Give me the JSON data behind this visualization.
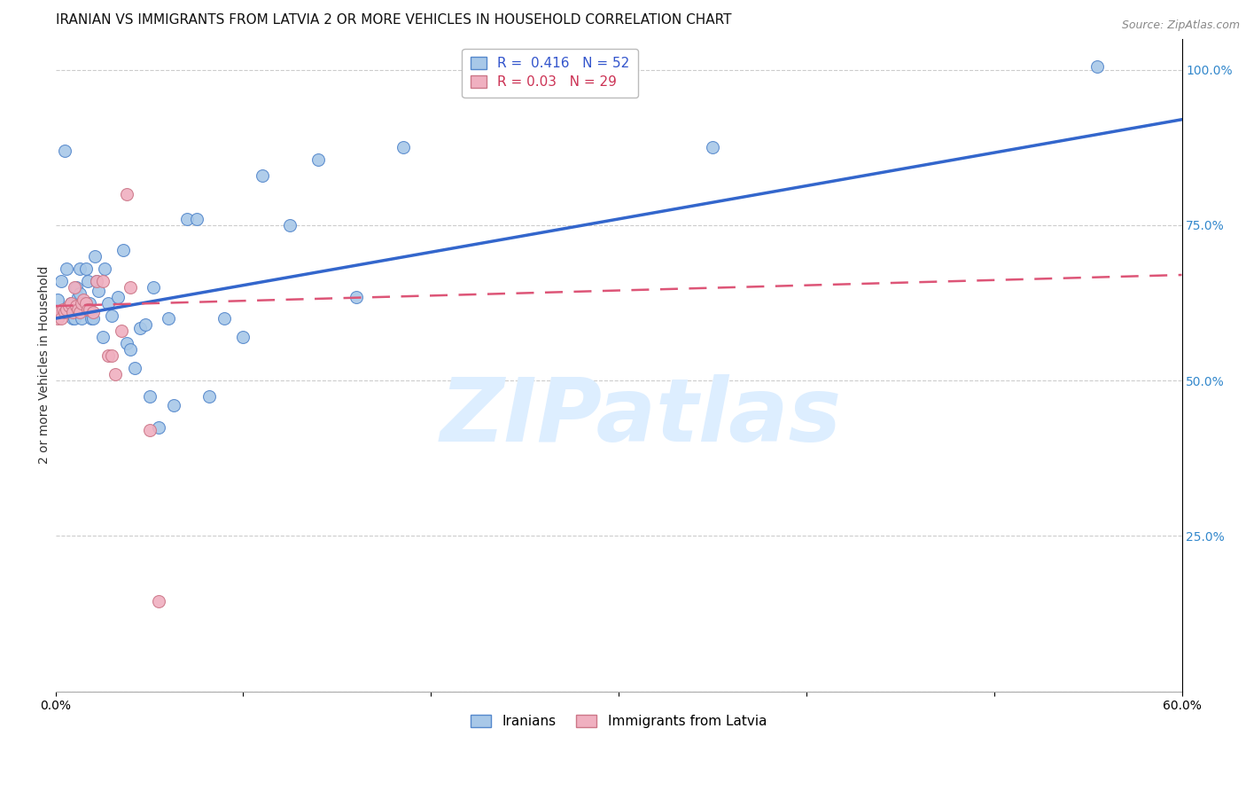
{
  "title": "IRANIAN VS IMMIGRANTS FROM LATVIA 2 OR MORE VEHICLES IN HOUSEHOLD CORRELATION CHART",
  "source": "Source: ZipAtlas.com",
  "ylabel": "2 or more Vehicles in Household",
  "x_min": 0.0,
  "x_max": 0.6,
  "y_min": 0.0,
  "y_max": 1.05,
  "y_ticks_right": [
    0.25,
    0.5,
    0.75,
    1.0
  ],
  "y_tick_labels_right": [
    "25.0%",
    "50.0%",
    "75.0%",
    "100.0%"
  ],
  "grid_color": "#cccccc",
  "background_color": "#ffffff",
  "iranians_color": "#a8c8e8",
  "iranians_edge_color": "#5588cc",
  "latvians_color": "#f0b0c0",
  "latvians_edge_color": "#cc7788",
  "R_iranians": 0.416,
  "N_iranians": 52,
  "R_latvians": 0.03,
  "N_latvians": 29,
  "legend_label_1": "Iranians",
  "legend_label_2": "Immigrants from Latvia",
  "iranians_x": [
    0.001,
    0.003,
    0.005,
    0.006,
    0.007,
    0.008,
    0.009,
    0.01,
    0.01,
    0.011,
    0.011,
    0.012,
    0.013,
    0.013,
    0.014,
    0.015,
    0.016,
    0.017,
    0.018,
    0.019,
    0.02,
    0.021,
    0.022,
    0.023,
    0.025,
    0.026,
    0.028,
    0.03,
    0.033,
    0.036,
    0.038,
    0.04,
    0.042,
    0.045,
    0.048,
    0.05,
    0.052,
    0.055,
    0.06,
    0.063,
    0.07,
    0.075,
    0.082,
    0.09,
    0.1,
    0.11,
    0.125,
    0.14,
    0.16,
    0.185,
    0.35,
    0.555
  ],
  "iranians_y": [
    0.63,
    0.66,
    0.87,
    0.68,
    0.62,
    0.625,
    0.6,
    0.6,
    0.615,
    0.65,
    0.615,
    0.635,
    0.68,
    0.64,
    0.6,
    0.625,
    0.68,
    0.66,
    0.625,
    0.6,
    0.6,
    0.7,
    0.66,
    0.645,
    0.57,
    0.68,
    0.625,
    0.605,
    0.635,
    0.71,
    0.56,
    0.55,
    0.52,
    0.585,
    0.59,
    0.475,
    0.65,
    0.425,
    0.6,
    0.46,
    0.76,
    0.76,
    0.475,
    0.6,
    0.57,
    0.83,
    0.75,
    0.855,
    0.635,
    0.875,
    0.875,
    1.005
  ],
  "latvians_x": [
    0.001,
    0.002,
    0.003,
    0.004,
    0.005,
    0.006,
    0.007,
    0.008,
    0.009,
    0.01,
    0.011,
    0.012,
    0.013,
    0.014,
    0.015,
    0.016,
    0.017,
    0.018,
    0.02,
    0.022,
    0.025,
    0.028,
    0.03,
    0.032,
    0.035,
    0.038,
    0.04,
    0.05,
    0.055
  ],
  "latvians_y": [
    0.6,
    0.61,
    0.6,
    0.615,
    0.61,
    0.615,
    0.62,
    0.625,
    0.61,
    0.65,
    0.62,
    0.615,
    0.61,
    0.625,
    0.63,
    0.625,
    0.615,
    0.615,
    0.61,
    0.66,
    0.66,
    0.54,
    0.54,
    0.51,
    0.58,
    0.8,
    0.65,
    0.42,
    0.145
  ],
  "title_fontsize": 11,
  "axis_label_fontsize": 10,
  "tick_fontsize": 10,
  "legend_fontsize": 11,
  "marker_size": 10,
  "watermark_color": "#ddeeff",
  "watermark_fontsize": 72
}
